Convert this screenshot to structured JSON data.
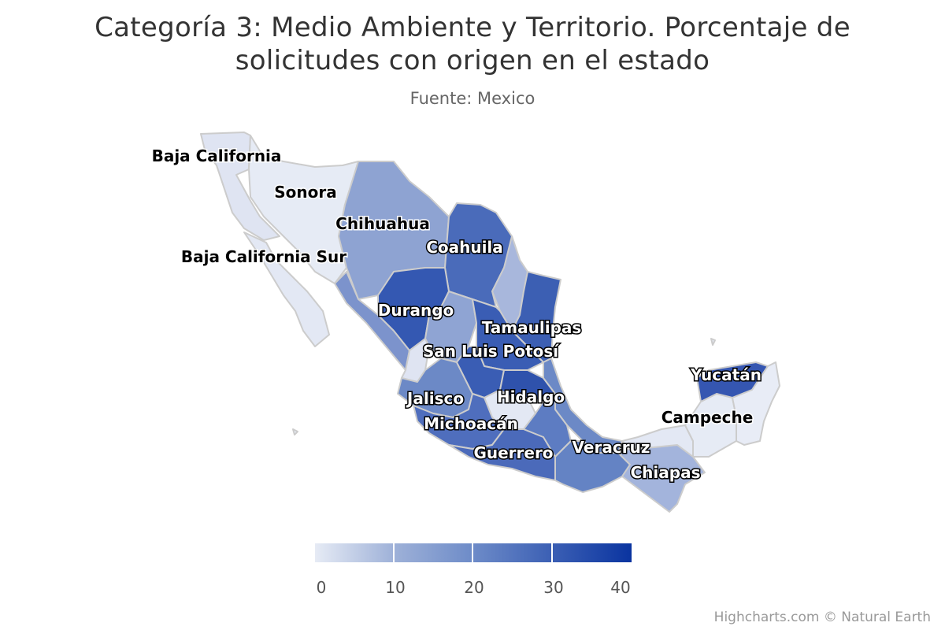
{
  "header": {
    "title_line1": "Categoría 3: Medio Ambiente y Territorio. Porcentaje de",
    "title_line2": "solicitudes con origen en el estado",
    "subtitle": "Fuente: Mexico"
  },
  "map_data": {
    "type": "choropleth",
    "region_labels": {
      "baja_california": "Baja California",
      "sonora": "Sonora",
      "chihuahua": "Chihuahua",
      "baja_california_sur": "Baja California Sur",
      "coahuila": "Coahuila",
      "durango": "Durango",
      "tamaulipas": "Tamaulipas",
      "san_luis_potosi": "San Luis Potosí",
      "yucatan": "Yucatán",
      "hidalgo": "Hidalgo",
      "jalisco": "Jalisco",
      "campeche": "Campeche",
      "michoacan": "Michoacán",
      "veracruz": "Veracruz",
      "guerrero": "Guerrero",
      "chiapas": "Chiapas"
    },
    "color_min": "#e6ebf5",
    "color_max": "#0a34a0",
    "border_color": "#cccccc"
  },
  "legend": {
    "ticks": [
      "0",
      "10",
      "20",
      "30",
      "40"
    ],
    "range": [
      0,
      41
    ]
  },
  "credits": "Highcharts.com © Natural Earth"
}
